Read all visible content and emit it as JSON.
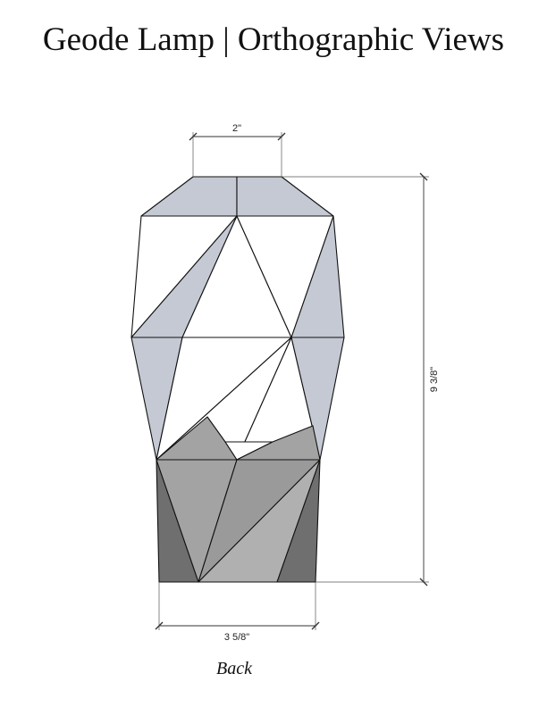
{
  "title": "Geode Lamp | Orthographic Views",
  "view_label": "Back",
  "dimensions": {
    "top_width": "2\"",
    "height": "9 3/8\"",
    "base_width": "3 5/8\""
  },
  "colors": {
    "shade_light": "#c5c9d3",
    "shade_white": "#ffffff",
    "base_mid": "#a3a3a3",
    "base_dark": "#6f6f6f",
    "base_light": "#b0b0b0",
    "lines": "#111111"
  }
}
